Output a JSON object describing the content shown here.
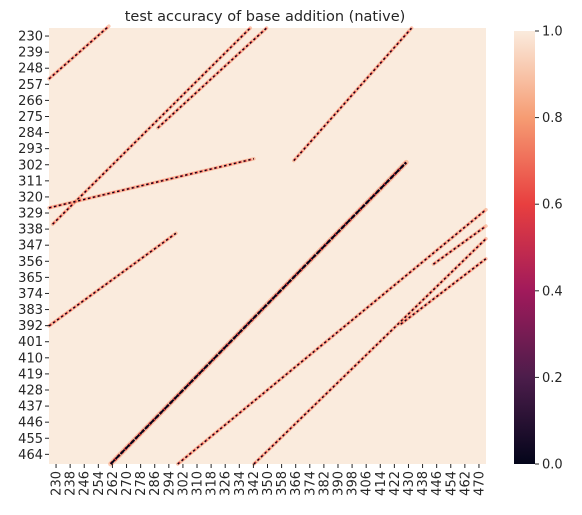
{
  "chart_data": {
    "type": "heatmap",
    "title": "test accuracy of base addition (native)",
    "xlabel": "",
    "ylabel": "",
    "x_range": [
      230,
      471
    ],
    "y_range": [
      230,
      470
    ],
    "x_tick_labels": [
      "230",
      "238",
      "246",
      "254",
      "262",
      "270",
      "278",
      "286",
      "294",
      "302",
      "310",
      "318",
      "326",
      "334",
      "342",
      "350",
      "358",
      "366",
      "374",
      "382",
      "390",
      "398",
      "406",
      "414",
      "422",
      "430",
      "438",
      "446",
      "454",
      "462",
      "470"
    ],
    "y_tick_labels": [
      "230",
      "239",
      "248",
      "257",
      "266",
      "275",
      "284",
      "293",
      "302",
      "311",
      "320",
      "329",
      "338",
      "347",
      "356",
      "365",
      "374",
      "383",
      "392",
      "401",
      "410",
      "419",
      "428",
      "437",
      "446",
      "455",
      "464"
    ],
    "colorbar": {
      "ticks": [
        "0.0",
        "0.2",
        "0.4",
        "0.6",
        "0.8",
        "1.0"
      ],
      "vmin": 0.0,
      "vmax": 1.0,
      "colormap": "rocket",
      "colors": [
        "#03051a",
        "#4c1d4b",
        "#a11a5b",
        "#e83f3f",
        "#f69c73",
        "#faebdd"
      ]
    },
    "background_value": 1.0,
    "low_accuracy_diagonals": [
      {
        "x_start": 232,
        "y_start": 338,
        "x_end": 341,
        "y_end": 230,
        "slope": -1,
        "note": "faint low band"
      },
      {
        "x_start": 230,
        "y_start": 258,
        "x_end": 263,
        "y_start_upper": 230,
        "y_end": 229
      },
      {
        "x_start": 230,
        "y_start": 329,
        "x_end": 343,
        "y_end": 302
      },
      {
        "x_start": 264,
        "y_start": 470,
        "x_end": 427,
        "y_end": 304,
        "strength": "strong"
      },
      {
        "x_start": 301,
        "y_start": 470,
        "x_end": 471,
        "y_end": 330
      },
      {
        "x_start": 343,
        "y_start": 470,
        "x_end": 471,
        "y_end": 346
      },
      {
        "x_start": 230,
        "y_start": 394,
        "x_end": 300,
        "y_end": 343
      },
      {
        "x_start": 365,
        "y_start": 303,
        "x_end": 430,
        "y_end": 230
      },
      {
        "x_start": 290,
        "y_start": 285,
        "x_end": 350,
        "y_end": 230
      },
      {
        "x_start": 442,
        "y_start": 360,
        "x_end": 471,
        "y_end": 339
      },
      {
        "x_start": 424,
        "y_start": 393,
        "x_end": 471,
        "y_end": 357
      }
    ],
    "value_encoding": "cell color = accuracy in [0,1]; black = 0.0, cream = 1.0"
  }
}
